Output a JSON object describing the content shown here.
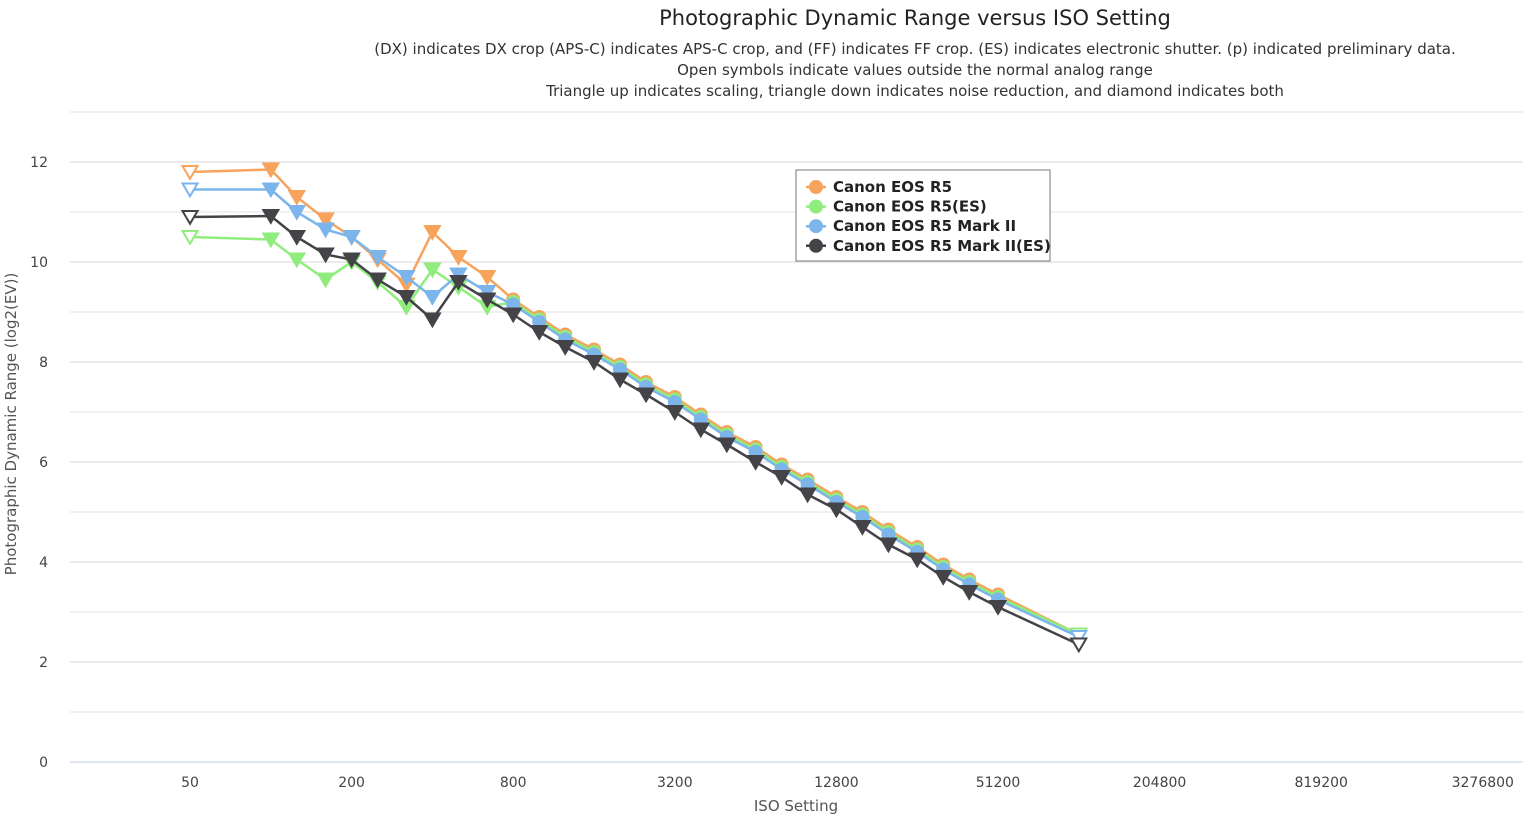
{
  "chart_data": {
    "type": "line",
    "title": "Photographic Dynamic Range versus ISO Setting",
    "subtitle": [
      "(DX) indicates DX crop (APS-C) indicates APS-C crop, and (FF) indicates FF crop. (ES) indicates electronic shutter. (p) indicated preliminary data.",
      "Open symbols indicate values outside the normal analog range",
      "Triangle up indicates scaling, triangle down indicates noise reduction, and diamond indicates both"
    ],
    "xlabel": "ISO Setting",
    "ylabel": "Photographic Dynamic Range (log2(EV))",
    "x_scale": "log2",
    "xlim": [
      50,
      3276800
    ],
    "ylim": [
      0,
      13
    ],
    "x_ticks": [
      "50",
      "200",
      "800",
      "3200",
      "12800",
      "51200",
      "204800",
      "819200",
      "3276800"
    ],
    "y_ticks": [
      "0",
      "2",
      "4",
      "6",
      "8",
      "10",
      "12"
    ],
    "grid": true,
    "legend_placement": "top-center",
    "x": [
      50,
      100,
      125,
      160,
      200,
      250,
      320,
      400,
      500,
      640,
      800,
      1000,
      1250,
      1600,
      2000,
      2500,
      3200,
      4000,
      5000,
      6400,
      8000,
      10000,
      12800,
      16000,
      20000,
      25600,
      32000,
      40000,
      51200,
      102400
    ],
    "series": [
      {
        "name": "Canon EOS R5",
        "color": "#f7a35c",
        "values": [
          11.8,
          11.85,
          11.3,
          10.85,
          10.5,
          10.05,
          9.55,
          10.6,
          10.1,
          9.7,
          9.25,
          8.9,
          8.55,
          8.25,
          7.95,
          7.6,
          7.3,
          6.95,
          6.6,
          6.3,
          5.95,
          5.65,
          5.3,
          5.0,
          4.65,
          4.3,
          3.95,
          3.65,
          3.35,
          2.55
        ]
      },
      {
        "name": "Canon EOS R5(ES)",
        "color": "#90ed7d",
        "values": [
          10.5,
          10.45,
          10.05,
          9.65,
          10.0,
          9.6,
          9.1,
          9.85,
          9.5,
          9.1,
          9.2,
          8.85,
          8.5,
          8.2,
          7.9,
          7.55,
          7.25,
          6.9,
          6.55,
          6.25,
          5.9,
          5.6,
          5.25,
          4.95,
          4.6,
          4.25,
          3.9,
          3.6,
          3.3,
          2.55
        ]
      },
      {
        "name": "Canon EOS R5 Mark II",
        "color": "#7cb5ec",
        "values": [
          11.45,
          11.45,
          11.0,
          10.65,
          10.5,
          10.1,
          9.7,
          9.3,
          9.75,
          9.4,
          9.15,
          8.8,
          8.45,
          8.15,
          7.85,
          7.5,
          7.2,
          6.85,
          6.5,
          6.2,
          5.85,
          5.55,
          5.2,
          4.9,
          4.55,
          4.2,
          3.85,
          3.55,
          3.25,
          2.5
        ]
      },
      {
        "name": "Canon EOS R5 Mark II(ES)",
        "color": "#434348",
        "values": [
          10.9,
          10.92,
          10.5,
          10.15,
          10.05,
          9.65,
          9.3,
          8.85,
          9.6,
          9.25,
          8.95,
          8.6,
          8.3,
          8.0,
          7.65,
          7.35,
          7.0,
          6.65,
          6.35,
          6.0,
          5.7,
          5.35,
          5.05,
          4.7,
          4.35,
          4.05,
          3.7,
          3.4,
          3.1,
          2.35
        ]
      }
    ]
  }
}
